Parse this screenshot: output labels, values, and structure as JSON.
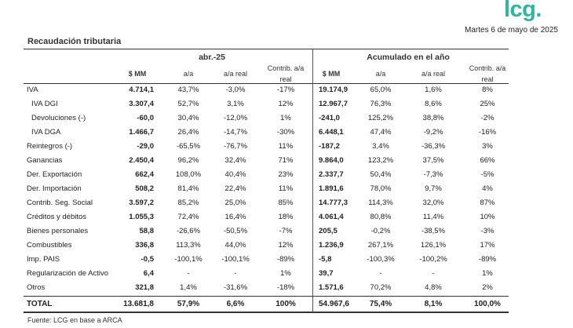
{
  "brand": {
    "logo": "lcg."
  },
  "date": "Martes 6 de mayo de 2025",
  "title": "Recaudación tributaria",
  "groups": {
    "month": "abr.-25",
    "ytd": "Acumulado en el año"
  },
  "columns": {
    "mm": "$ MM",
    "aa": "a/a",
    "aa_real": "a/a real",
    "contrib_l1": "Contrib. a/a",
    "contrib_l2": "real"
  },
  "rows": [
    {
      "label": "IVA",
      "m_mm": "4.714,1",
      "m_aa": "43,7%",
      "m_real": "-3,0%",
      "m_contrib": "-17%",
      "y_mm": "19.174,9",
      "y_aa": "65,0%",
      "y_real": "1,6%",
      "y_contrib": "8%"
    },
    {
      "label": "IVA DGI",
      "m_mm": "3.307,4",
      "m_aa": "52,7%",
      "m_real": "3,1%",
      "m_contrib": "12%",
      "y_mm": "12.967,7",
      "y_aa": "76,3%",
      "y_real": "8,6%",
      "y_contrib": "25%"
    },
    {
      "label": "Devoluciones (-)",
      "m_mm": "-60,0",
      "m_aa": "30,4%",
      "m_real": "-12,0%",
      "m_contrib": "1%",
      "y_mm": "-241,0",
      "y_aa": "125,2%",
      "y_real": "38,8%",
      "y_contrib": "-2%"
    },
    {
      "label": "IVA DGA",
      "m_mm": "1.466,7",
      "m_aa": "26,4%",
      "m_real": "-14,7%",
      "m_contrib": "-30%",
      "y_mm": "6.448,1",
      "y_aa": "47,4%",
      "y_real": "-9,2%",
      "y_contrib": "-16%"
    },
    {
      "label": "Reintegros (-)",
      "m_mm": "-29,0",
      "m_aa": "-65,5%",
      "m_real": "-76,7%",
      "m_contrib": "11%",
      "y_mm": "-187,2",
      "y_aa": "3,4%",
      "y_real": "-36,3%",
      "y_contrib": "3%"
    },
    {
      "label": "Ganancias",
      "m_mm": "2.450,4",
      "m_aa": "96,2%",
      "m_real": "32,4%",
      "m_contrib": "71%",
      "y_mm": "9.864,0",
      "y_aa": "123,2%",
      "y_real": "37,5%",
      "y_contrib": "66%"
    },
    {
      "label": "Der. Exportación",
      "m_mm": "662,4",
      "m_aa": "108,0%",
      "m_real": "40,4%",
      "m_contrib": "23%",
      "y_mm": "2.337,7",
      "y_aa": "50,4%",
      "y_real": "-7,3%",
      "y_contrib": "-5%"
    },
    {
      "label": "Der. Importación",
      "m_mm": "508,2",
      "m_aa": "81,4%",
      "m_real": "22,4%",
      "m_contrib": "11%",
      "y_mm": "1.891,6",
      "y_aa": "78,0%",
      "y_real": "9,7%",
      "y_contrib": "4%"
    },
    {
      "label": "Contrib. Seg. Social",
      "m_mm": "3.597,2",
      "m_aa": "85,2%",
      "m_real": "25,0%",
      "m_contrib": "85%",
      "y_mm": "14.777,3",
      "y_aa": "114,3%",
      "y_real": "32,0%",
      "y_contrib": "87%"
    },
    {
      "label": "Créditos y débitos",
      "m_mm": "1.055,3",
      "m_aa": "72,4%",
      "m_real": "16,4%",
      "m_contrib": "18%",
      "y_mm": "4.061,4",
      "y_aa": "80,8%",
      "y_real": "11,4%",
      "y_contrib": "10%"
    },
    {
      "label": "Bienes personales",
      "m_mm": "58,8",
      "m_aa": "-26,6%",
      "m_real": "-50,5%",
      "m_contrib": "-7%",
      "y_mm": "205,5",
      "y_aa": "-0,2%",
      "y_real": "-38,5%",
      "y_contrib": "-3%"
    },
    {
      "label": "Combustibles",
      "m_mm": "336,8",
      "m_aa": "113,3%",
      "m_real": "44,0%",
      "m_contrib": "12%",
      "y_mm": "1.236,9",
      "y_aa": "267,1%",
      "y_real": "126,1%",
      "y_contrib": "17%"
    },
    {
      "label": "Imp. PAIS",
      "m_mm": "-0,5",
      "m_aa": "-100,1%",
      "m_real": "-100,1%",
      "m_contrib": "-89%",
      "y_mm": "-5,8",
      "y_aa": "-100,3%",
      "y_real": "-100,2%",
      "y_contrib": "-89%"
    },
    {
      "label": "Regularización de Activo",
      "m_mm": "6,4",
      "m_aa": "-",
      "m_real": "-",
      "m_contrib": "1%",
      "y_mm": "39,7",
      "y_aa": "-",
      "y_real": "-",
      "y_contrib": "1%"
    },
    {
      "label": "Otros",
      "m_mm": "321,8",
      "m_aa": "1,4%",
      "m_real": "-31,6%",
      "m_contrib": "-18%",
      "y_mm": "1.571,6",
      "y_aa": "70,2%",
      "y_real": "4,8%",
      "y_contrib": "2%"
    }
  ],
  "total": {
    "label": "TOTAL",
    "m_mm": "13.681,8",
    "m_aa": "57,9%",
    "m_real": "6,6%",
    "m_contrib": "100%",
    "y_mm": "54.967,6",
    "y_aa": "75,4%",
    "y_real": "8,1%",
    "y_contrib": "100,0%"
  },
  "footer": "Fuente: LCG en base a ARCA"
}
